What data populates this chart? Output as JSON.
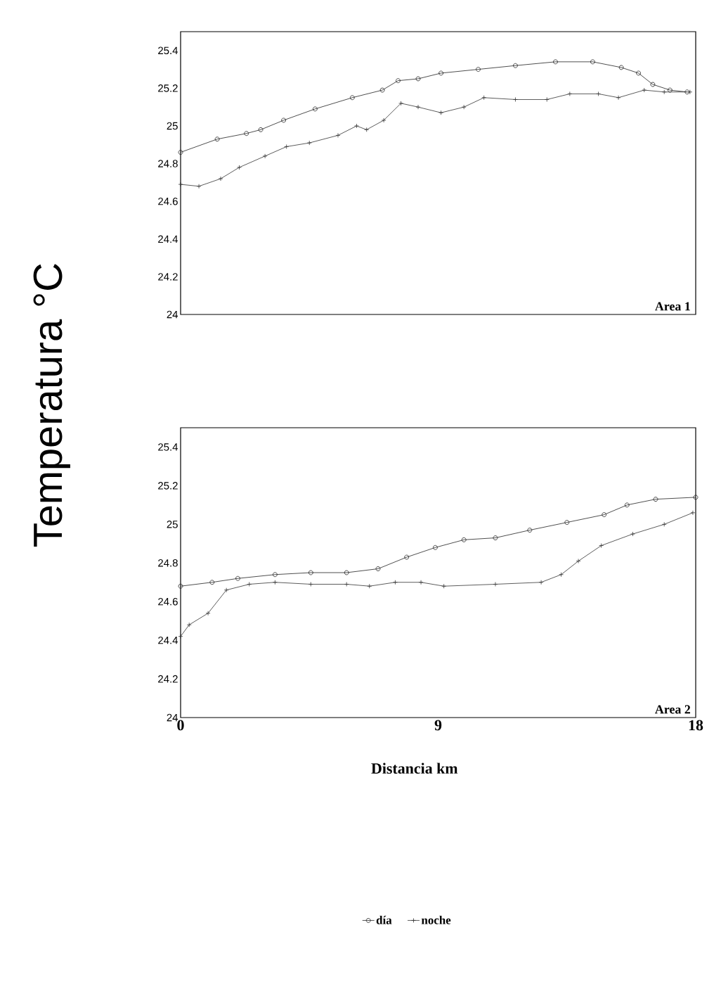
{
  "chart_data": [
    {
      "type": "line",
      "ylabel": "Temperatura   °C",
      "annotations": [
        "Area 1"
      ],
      "xlim": [
        0,
        18
      ],
      "ylim": [
        24,
        25.5
      ],
      "yticks": [
        24,
        24.2,
        24.4,
        24.6,
        24.8,
        25,
        25.2,
        25.4
      ],
      "tick_labels": "y",
      "line_style": "solid",
      "series": [
        {
          "color": "#222222",
          "marker": "circle",
          "x": [
            0,
            1.28,
            2.3,
            2.8,
            3.6,
            4.7,
            6.0,
            7.05,
            7.6,
            8.3,
            9.1,
            10.4,
            11.7,
            13.1,
            14.4,
            15.4,
            16.0,
            16.5,
            17.1,
            17.7
          ],
          "values": [
            24.86,
            24.93,
            24.96,
            24.98,
            25.03,
            25.09,
            25.15,
            25.19,
            25.24,
            25.25,
            25.28,
            25.3,
            25.32,
            25.34,
            25.34,
            25.31,
            25.28,
            25.22,
            25.19,
            25.18
          ]
        },
        {
          "color": "#333333",
          "marker": "cross",
          "x": [
            0,
            0.64,
            1.4,
            2.05,
            2.95,
            3.7,
            4.5,
            5.5,
            6.15,
            6.5,
            7.1,
            7.7,
            8.3,
            9.1,
            9.9,
            10.6,
            11.7,
            12.8,
            13.6,
            14.6,
            15.3,
            16.2,
            16.9,
            17.8
          ],
          "values": [
            24.69,
            24.68,
            24.72,
            24.78,
            24.84,
            24.89,
            24.91,
            24.95,
            25.0,
            24.98,
            25.03,
            25.12,
            25.1,
            25.07,
            25.1,
            25.15,
            25.14,
            25.14,
            25.17,
            25.17,
            25.15,
            25.19,
            25.18,
            25.18
          ]
        }
      ]
    },
    {
      "type": "line",
      "xlabel": "Distancia  km",
      "annotations": [
        "Area 2"
      ],
      "xlim": [
        0,
        18
      ],
      "xticks": [
        0,
        9,
        18
      ],
      "ylim": [
        24,
        25.5
      ],
      "yticks": [
        24,
        24.2,
        24.4,
        24.6,
        24.8,
        25,
        25.2,
        25.4
      ],
      "legend": "bottom",
      "line_style": "solid",
      "series": [
        {
          "name": "día",
          "color": "#222222",
          "marker": "circle",
          "x": [
            0,
            1.1,
            2.0,
            3.3,
            4.55,
            5.8,
            6.9,
            7.9,
            8.9,
            9.9,
            11.0,
            12.2,
            13.5,
            14.8,
            15.6,
            16.6,
            18.0
          ],
          "values": [
            24.68,
            24.7,
            24.72,
            24.74,
            24.75,
            24.75,
            24.77,
            24.83,
            24.88,
            24.92,
            24.93,
            24.97,
            25.01,
            25.05,
            25.1,
            25.13,
            25.14
          ]
        },
        {
          "name": "noche",
          "color": "#333333",
          "marker": "cross",
          "x": [
            0,
            0.3,
            0.96,
            1.6,
            2.4,
            3.3,
            4.55,
            5.8,
            6.6,
            7.5,
            8.4,
            9.2,
            11.0,
            12.6,
            13.3,
            13.9,
            14.7,
            15.8,
            16.9,
            17.9
          ],
          "values": [
            24.42,
            24.48,
            24.54,
            24.66,
            24.69,
            24.7,
            24.69,
            24.69,
            24.68,
            24.7,
            24.7,
            24.68,
            24.69,
            24.7,
            24.74,
            24.81,
            24.89,
            24.95,
            25.0,
            25.06
          ]
        }
      ]
    }
  ]
}
